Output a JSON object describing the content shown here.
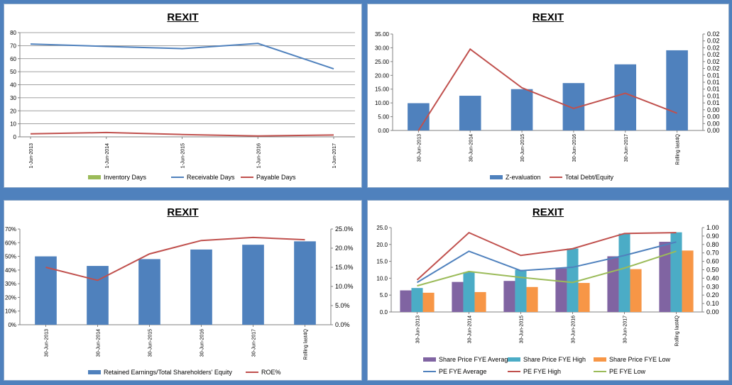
{
  "chart_data": [
    {
      "id": "c1",
      "type": "line",
      "title": "REXIT",
      "categories": [
        "1-Jun-2013",
        "1-Jun-2014",
        "1-Jun-2015",
        "1-Jun-2016",
        "1-Jun-2017"
      ],
      "ylim": [
        0,
        80
      ],
      "yticks": [
        "0",
        "10",
        "20",
        "30",
        "40",
        "50",
        "60",
        "70",
        "80"
      ],
      "grid": true,
      "legend_position": "bottom",
      "series": [
        {
          "name": "Inventory Days",
          "color": "#9BBB59",
          "values": [
            null,
            null,
            null,
            null,
            null
          ]
        },
        {
          "name": "Receivable Days",
          "color": "#4F81BD",
          "values": [
            71.2,
            69.4,
            67.7,
            71.7,
            52.2
          ]
        },
        {
          "name": "Payable Days",
          "color": "#C0504D",
          "values": [
            2.3,
            3.3,
            1.8,
            0.7,
            1.4
          ]
        }
      ]
    },
    {
      "id": "c2",
      "type": "bar",
      "title": "REXIT",
      "categories": [
        "30-Jun-2013",
        "30-Jun-2014",
        "30-Jun-2015",
        "30-Jun-2016",
        "30-Jun-2017",
        "Rolling last4Q"
      ],
      "ylim": [
        0,
        35
      ],
      "yticks": [
        "0.00",
        "5.00",
        "10.00",
        "15.00",
        "20.00",
        "25.00",
        "30.00",
        "35.00"
      ],
      "y2lim": [
        0,
        0.028
      ],
      "y2ticks": [
        "0.00",
        "0.00",
        "0.00",
        "0.00",
        "0.01",
        "0.01",
        "0.01",
        "0.01",
        "0.01",
        "0.02",
        "0.02",
        "0.02",
        "0.02",
        "0.02",
        "0.02"
      ],
      "grid": false,
      "legend_position": "bottom",
      "bar_series": [
        {
          "name": "Z-evaluation",
          "color": "#4F81BD",
          "values": [
            9.9,
            12.6,
            15.0,
            17.2,
            24.0,
            29.1
          ]
        }
      ],
      "line_series": [
        {
          "name": "Total Debt/Equity",
          "color": "#C0504D",
          "values": [
            0.0,
            0.0236,
            0.0124,
            0.0064,
            0.0108,
            0.005
          ]
        }
      ]
    },
    {
      "id": "c3",
      "type": "bar",
      "title": "REXIT",
      "categories": [
        "30-Jun-2013",
        "30-Jun-2014",
        "30-Jun-2015",
        "30-Jun-2016",
        "30-Jun-2017",
        "Rolling last4Q"
      ],
      "ylim": [
        0,
        70
      ],
      "yticks": [
        "0%",
        "10%",
        "20%",
        "30%",
        "40%",
        "50%",
        "60%",
        "70%"
      ],
      "y2lim": [
        0,
        25
      ],
      "y2ticks": [
        "0.0%",
        "5.0%",
        "10.0%",
        "15.0%",
        "20.0%",
        "25.0%"
      ],
      "grid": false,
      "legend_position": "bottom",
      "bar_series": [
        {
          "name": "Retained Earnings/Total Shareholders' Equity",
          "color": "#4F81BD",
          "values": [
            50,
            43,
            48,
            55,
            58.5,
            61
          ]
        }
      ],
      "line_series": [
        {
          "name": "ROE%",
          "color": "#C0504D",
          "values": [
            15.0,
            11.6,
            18.5,
            22.0,
            22.8,
            22.2
          ]
        }
      ]
    },
    {
      "id": "c4",
      "type": "bar",
      "title": "REXIT",
      "categories": [
        "30-Jun-2013",
        "30-Jun-2014",
        "30-Jun-2015",
        "30-Jun-2016",
        "30-Jun-2017",
        "Rolling last4Q"
      ],
      "ylim": [
        0,
        25
      ],
      "yticks": [
        "0.0",
        "5.0",
        "10.0",
        "15.0",
        "20.0",
        "25.0"
      ],
      "y2lim": [
        0,
        1.0
      ],
      "y2ticks": [
        "0.00",
        "0.10",
        "0.20",
        "0.30",
        "0.40",
        "0.50",
        "0.60",
        "0.70",
        "0.80",
        "0.90",
        "1.00"
      ],
      "grid": false,
      "legend_position": "bottom",
      "bar_series": [
        {
          "name": "Share Price FYE Average",
          "color": "#8064A2",
          "values": [
            6.4,
            8.9,
            9.2,
            12.9,
            16.5,
            20.8
          ]
        },
        {
          "name": "Share Price FYE High",
          "color": "#4BACC6",
          "values": [
            7.1,
            11.8,
            12.5,
            18.8,
            23.2,
            23.6
          ]
        },
        {
          "name": "Share Price FYE Low",
          "color": "#F79646",
          "values": [
            5.7,
            5.9,
            7.4,
            8.6,
            12.7,
            18.2
          ]
        }
      ],
      "line_series": [
        {
          "name": "PE FYE Average",
          "color": "#4F81BD",
          "values": [
            0.35,
            0.72,
            0.49,
            0.53,
            0.67,
            0.83
          ]
        },
        {
          "name": "PE FYE High",
          "color": "#C0504D",
          "values": [
            0.38,
            0.94,
            0.67,
            0.75,
            0.93,
            0.94
          ]
        },
        {
          "name": "PE FYE Low",
          "color": "#9BBB59",
          "values": [
            0.31,
            0.48,
            0.41,
            0.35,
            0.52,
            0.72
          ]
        }
      ]
    }
  ]
}
